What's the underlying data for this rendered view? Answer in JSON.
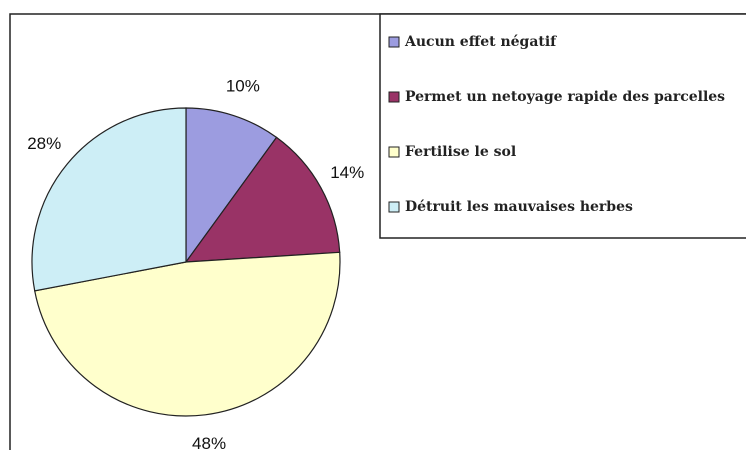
{
  "chart_data": {
    "type": "pie",
    "categories": [
      "Aucun effet négatif",
      "Permet un netoyage rapide des parcelles",
      "Fertilise le sol",
      "Détruit les mauvaises herbes"
    ],
    "values": [
      10,
      14,
      48,
      28
    ],
    "value_labels": [
      "10%",
      "14%",
      "48%",
      "28%"
    ],
    "colors": [
      "#9c9ce0",
      "#993366",
      "#ffffcc",
      "#cdeef6"
    ],
    "legend": "right"
  }
}
